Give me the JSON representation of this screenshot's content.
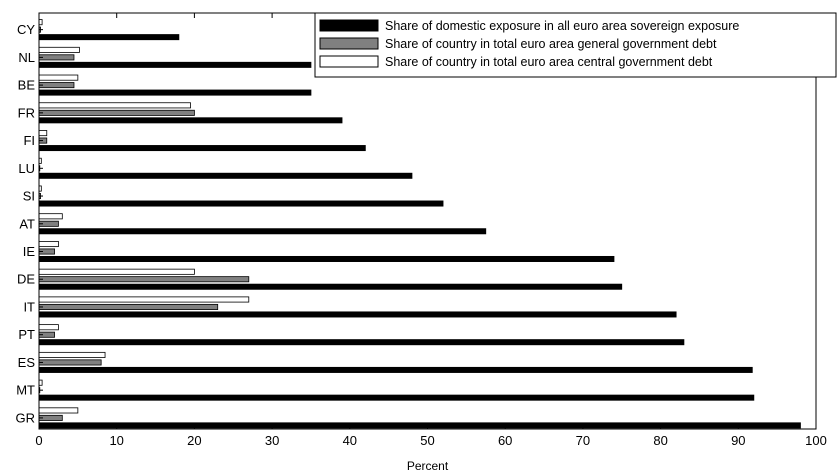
{
  "chart_data": {
    "type": "bar",
    "orientation": "horizontal",
    "categories": [
      "CY",
      "NL",
      "BE",
      "FR",
      "FI",
      "LU",
      "SI",
      "AT",
      "IE",
      "DE",
      "IT",
      "PT",
      "ES",
      "MT",
      "GR"
    ],
    "series": [
      {
        "name": "Share of domestic exposure in all euro area sovereign exposure",
        "color": "#000000",
        "values": [
          18,
          35,
          35,
          39,
          42,
          48,
          52,
          57.5,
          74,
          75,
          82,
          83,
          91.8,
          92,
          98
        ]
      },
      {
        "name": "Share of country in total euro area general government debt",
        "color": "#808080",
        "values": [
          0.2,
          4.5,
          4.5,
          20,
          1,
          0.1,
          0.2,
          2.5,
          2,
          27,
          23,
          2,
          8,
          0.1,
          3
        ]
      },
      {
        "name": "Share of country in total euro area central government debt",
        "color": "#ffffff",
        "values": [
          0.4,
          5.2,
          5,
          19.5,
          1,
          0.3,
          0.3,
          3,
          2.5,
          20,
          27,
          2.5,
          8.5,
          0.4,
          5
        ]
      }
    ],
    "xlabel": "Percent",
    "ylabel": "",
    "xlim": [
      0,
      100
    ],
    "xticks": [
      0,
      10,
      20,
      30,
      40,
      50,
      60,
      70,
      80,
      90,
      100
    ],
    "legend_position": "top-right",
    "grid": false
  }
}
